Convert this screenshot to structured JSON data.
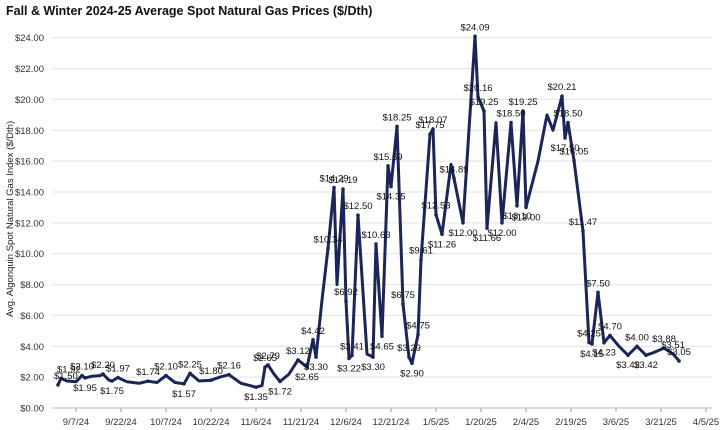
{
  "chart_data": {
    "type": "line",
    "title": "Fall & Winter 2024-25 Average Spot Natural Gas Prices ($/Dth)",
    "xlabel": "",
    "ylabel": "Avg. Algonquin Spot Natural Gas Index ($/Dth)",
    "x_tick_labels": [
      "9/7/24",
      "9/22/24",
      "10/7/24",
      "10/22/24",
      "11/6/24",
      "11/21/24",
      "12/6/24",
      "12/21/24",
      "1/5/25",
      "1/20/25",
      "2/4/25",
      "2/19/25",
      "3/6/25",
      "3/21/25",
      "4/5/25"
    ],
    "y_tick_labels": [
      "$0.00",
      "$2.00",
      "$4.00",
      "$6.00",
      "$8.00",
      "$10.00",
      "$12.00",
      "$14.00",
      "$16.00",
      "$18.00",
      "$20.00",
      "$22.00",
      "$24.00"
    ],
    "xlim": [
      "2024-08-30",
      "2025-04-07"
    ],
    "ylim": [
      0,
      24.5
    ],
    "grid": true,
    "line_color": "#1c2557",
    "series": [
      {
        "name": "",
        "points": [
          {
            "x": "2024-09-01",
            "y": 1.5,
            "label": "$1.50"
          },
          {
            "x": "2024-09-02",
            "y": 1.92,
            "label": "$1.92"
          },
          {
            "x": "2024-09-04",
            "y": 1.75
          },
          {
            "x": "2024-09-07",
            "y": 1.7
          },
          {
            "x": "2024-09-09",
            "y": 2.1,
            "label": "$2.10"
          },
          {
            "x": "2024-09-10",
            "y": 1.95,
            "label": "$1.95"
          },
          {
            "x": "2024-09-12",
            "y": 2.05
          },
          {
            "x": "2024-09-15",
            "y": 2.1
          },
          {
            "x": "2024-09-16",
            "y": 2.2,
            "label": "$2.20"
          },
          {
            "x": "2024-09-18",
            "y": 1.8
          },
          {
            "x": "2024-09-19",
            "y": 1.75,
            "label": "$1.75"
          },
          {
            "x": "2024-09-21",
            "y": 1.97,
            "label": "$1.97"
          },
          {
            "x": "2024-09-24",
            "y": 1.7
          },
          {
            "x": "2024-09-28",
            "y": 1.6
          },
          {
            "x": "2024-10-01",
            "y": 1.74,
            "label": "$1.74"
          },
          {
            "x": "2024-10-04",
            "y": 1.65
          },
          {
            "x": "2024-10-07",
            "y": 2.1,
            "label": "$2.10"
          },
          {
            "x": "2024-10-10",
            "y": 1.65
          },
          {
            "x": "2024-10-13",
            "y": 1.57,
            "label": "$1.57"
          },
          {
            "x": "2024-10-15",
            "y": 2.25,
            "label": "$2.25"
          },
          {
            "x": "2024-10-18",
            "y": 1.75
          },
          {
            "x": "2024-10-22",
            "y": 1.8,
            "label": "$1.80"
          },
          {
            "x": "2024-10-25",
            "y": 2.0
          },
          {
            "x": "2024-10-28",
            "y": 2.16,
            "label": "$2.16"
          },
          {
            "x": "2024-11-01",
            "y": 1.6
          },
          {
            "x": "2024-11-04",
            "y": 1.45
          },
          {
            "x": "2024-11-06",
            "y": 1.35,
            "label": "$1.35"
          },
          {
            "x": "2024-11-08",
            "y": 1.45
          },
          {
            "x": "2024-11-09",
            "y": 2.65,
            "label": "$2.65"
          },
          {
            "x": "2024-11-10",
            "y": 2.79,
            "label": "$2.79"
          },
          {
            "x": "2024-11-12",
            "y": 2.2
          },
          {
            "x": "2024-11-14",
            "y": 1.72,
            "label": "$1.72"
          },
          {
            "x": "2024-11-17",
            "y": 2.2
          },
          {
            "x": "2024-11-20",
            "y": 3.12,
            "label": "$3.12"
          },
          {
            "x": "2024-11-23",
            "y": 2.65,
            "label": "$2.65"
          },
          {
            "x": "2024-11-25",
            "y": 4.42,
            "label": "$4.42"
          },
          {
            "x": "2024-11-26",
            "y": 3.3,
            "label": "$3.30"
          },
          {
            "x": "2024-11-28",
            "y": 7.0
          },
          {
            "x": "2024-11-30",
            "y": 10.34,
            "label": "$10.34"
          },
          {
            "x": "2024-12-02",
            "y": 14.29,
            "label": "$14.29"
          },
          {
            "x": "2024-12-03",
            "y": 8.0
          },
          {
            "x": "2024-12-05",
            "y": 14.19,
            "label": "$14.19"
          },
          {
            "x": "2024-12-06",
            "y": 6.92,
            "label": "$6.92"
          },
          {
            "x": "2024-12-07",
            "y": 3.22,
            "label": "$3.22"
          },
          {
            "x": "2024-12-08",
            "y": 3.41,
            "label": "$3.41"
          },
          {
            "x": "2024-12-10",
            "y": 12.5,
            "label": "$12.50"
          },
          {
            "x": "2024-12-13",
            "y": 3.5
          },
          {
            "x": "2024-12-15",
            "y": 3.3,
            "label": "$3.30"
          },
          {
            "x": "2024-12-16",
            "y": 10.63,
            "label": "$10.63"
          },
          {
            "x": "2024-12-18",
            "y": 4.65,
            "label": "$4.65"
          },
          {
            "x": "2024-12-20",
            "y": 15.69,
            "label": "$15.69"
          },
          {
            "x": "2024-12-21",
            "y": 14.35,
            "label": "$14.35"
          },
          {
            "x": "2024-12-23",
            "y": 18.25,
            "label": "$18.25"
          },
          {
            "x": "2024-12-25",
            "y": 6.75,
            "label": "$6.75"
          },
          {
            "x": "2024-12-27",
            "y": 3.29,
            "label": "$3.29"
          },
          {
            "x": "2024-12-28",
            "y": 2.9,
            "label": "$2.90"
          },
          {
            "x": "2024-12-30",
            "y": 4.75,
            "label": "$4.75"
          },
          {
            "x": "2024-12-31",
            "y": 9.61,
            "label": "$9.61"
          },
          {
            "x": "2025-01-03",
            "y": 17.75,
            "label": "$17.75"
          },
          {
            "x": "2025-01-04",
            "y": 18.07,
            "label": "$18.07"
          },
          {
            "x": "2025-01-05",
            "y": 12.53,
            "label": "$12.53"
          },
          {
            "x": "2025-01-07",
            "y": 11.26,
            "label": "$11.26"
          },
          {
            "x": "2025-01-10",
            "y": 15.8
          },
          {
            "x": "2025-01-11",
            "y": 14.89,
            "label": "$14.89"
          },
          {
            "x": "2025-01-14",
            "y": 12.0,
            "label": "$12.00"
          },
          {
            "x": "2025-01-18",
            "y": 24.09,
            "label": "$24.09"
          },
          {
            "x": "2025-01-19",
            "y": 20.16,
            "label": "$20.16"
          },
          {
            "x": "2025-01-21",
            "y": 19.25,
            "label": "$19.25"
          },
          {
            "x": "2025-01-22",
            "y": 11.66,
            "label": "$11.66"
          },
          {
            "x": "2025-01-25",
            "y": 18.5
          },
          {
            "x": "2025-01-27",
            "y": 12.0,
            "label": "$12.00"
          },
          {
            "x": "2025-01-30",
            "y": 18.5,
            "label": "$18.50"
          },
          {
            "x": "2025-02-01",
            "y": 13.1,
            "label": "$13.10"
          },
          {
            "x": "2025-02-03",
            "y": 19.25,
            "label": "$19.25"
          },
          {
            "x": "2025-02-04",
            "y": 13.0,
            "label": "$13.00"
          },
          {
            "x": "2025-02-08",
            "y": 16.0
          },
          {
            "x": "2025-02-11",
            "y": 19.0
          },
          {
            "x": "2025-02-13",
            "y": 18.0
          },
          {
            "x": "2025-02-16",
            "y": 20.21,
            "label": "$20.21"
          },
          {
            "x": "2025-02-17",
            "y": 17.5,
            "label": "$17.50"
          },
          {
            "x": "2025-02-18",
            "y": 18.5,
            "label": "$18.50"
          },
          {
            "x": "2025-02-20",
            "y": 16.05,
            "label": "$16.05"
          },
          {
            "x": "2025-02-23",
            "y": 11.47,
            "label": "$11.47"
          },
          {
            "x": "2025-02-25",
            "y": 4.25,
            "label": "$4.25"
          },
          {
            "x": "2025-02-26",
            "y": 4.15,
            "label": "$4.15"
          },
          {
            "x": "2025-02-28",
            "y": 7.5,
            "label": "$7.50"
          },
          {
            "x": "2025-03-02",
            "y": 4.23,
            "label": "$4.23"
          },
          {
            "x": "2025-03-04",
            "y": 4.7,
            "label": "$4.70"
          },
          {
            "x": "2025-03-07",
            "y": 4.0
          },
          {
            "x": "2025-03-10",
            "y": 3.42,
            "label": "$3.42"
          },
          {
            "x": "2025-03-13",
            "y": 4.0,
            "label": "$4.00"
          },
          {
            "x": "2025-03-16",
            "y": 3.42,
            "label": "$3.42"
          },
          {
            "x": "2025-03-18",
            "y": 3.55
          },
          {
            "x": "2025-03-22",
            "y": 3.88,
            "label": "$3.88"
          },
          {
            "x": "2025-03-25",
            "y": 3.51,
            "label": "$3.51"
          },
          {
            "x": "2025-03-27",
            "y": 3.05,
            "label": "$3.05"
          }
        ]
      }
    ]
  }
}
